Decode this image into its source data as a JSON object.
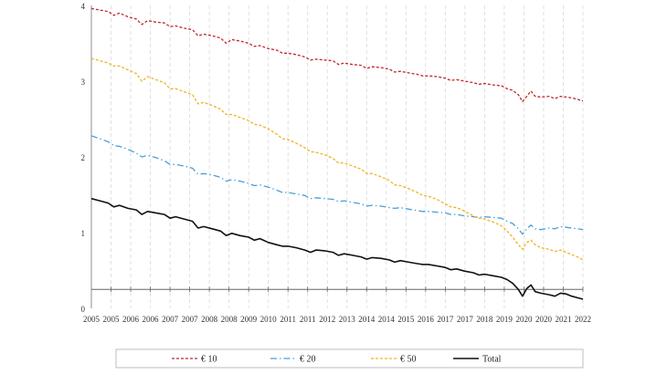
{
  "chart_data": {
    "type": "line",
    "title": "",
    "xlabel": "",
    "ylabel": "",
    "x_tick_labels": [
      "2005",
      "2005",
      "2006",
      "2006",
      "2007",
      "2007",
      "2008",
      "2008",
      "2009",
      "2010",
      "2011",
      "2011",
      "2012",
      "2013",
      "2014",
      "2014",
      "2015",
      "2016",
      "2017",
      "2017",
      "2018",
      "2019",
      "2020",
      "2020",
      "2021",
      "2022"
    ],
    "y_ticks": [
      0,
      1,
      2,
      3,
      4
    ],
    "ylim": [
      0,
      4
    ],
    "xlim": [
      2005.0,
      2022.5
    ],
    "reference_line_y": 0.25,
    "grid": {
      "vertical": true,
      "horizontal": false
    },
    "legend_position": "bottom",
    "series": [
      {
        "name": "€ 10",
        "color": "#c0282d",
        "style": "dashed",
        "points": [
          [
            2005.0,
            3.96
          ],
          [
            2005.3,
            3.94
          ],
          [
            2005.6,
            3.92
          ],
          [
            2005.8,
            3.87
          ],
          [
            2006.0,
            3.9
          ],
          [
            2006.3,
            3.85
          ],
          [
            2006.6,
            3.82
          ],
          [
            2006.8,
            3.75
          ],
          [
            2007.0,
            3.8
          ],
          [
            2007.3,
            3.78
          ],
          [
            2007.6,
            3.77
          ],
          [
            2007.8,
            3.72
          ],
          [
            2008.0,
            3.73
          ],
          [
            2008.3,
            3.7
          ],
          [
            2008.6,
            3.68
          ],
          [
            2008.8,
            3.6
          ],
          [
            2009.0,
            3.62
          ],
          [
            2009.3,
            3.6
          ],
          [
            2009.6,
            3.57
          ],
          [
            2009.8,
            3.5
          ],
          [
            2010.0,
            3.55
          ],
          [
            2010.3,
            3.53
          ],
          [
            2010.6,
            3.5
          ],
          [
            2010.8,
            3.46
          ],
          [
            2011.0,
            3.47
          ],
          [
            2011.3,
            3.43
          ],
          [
            2011.6,
            3.41
          ],
          [
            2011.8,
            3.37
          ],
          [
            2012.0,
            3.37
          ],
          [
            2012.3,
            3.35
          ],
          [
            2012.6,
            3.32
          ],
          [
            2012.8,
            3.28
          ],
          [
            2013.0,
            3.29
          ],
          [
            2013.3,
            3.28
          ],
          [
            2013.6,
            3.27
          ],
          [
            2013.8,
            3.22
          ],
          [
            2014.0,
            3.24
          ],
          [
            2014.3,
            3.22
          ],
          [
            2014.6,
            3.21
          ],
          [
            2014.8,
            3.17
          ],
          [
            2015.0,
            3.19
          ],
          [
            2015.3,
            3.18
          ],
          [
            2015.6,
            3.16
          ],
          [
            2015.8,
            3.12
          ],
          [
            2016.0,
            3.13
          ],
          [
            2016.3,
            3.11
          ],
          [
            2016.6,
            3.09
          ],
          [
            2016.8,
            3.07
          ],
          [
            2017.0,
            3.07
          ],
          [
            2017.3,
            3.06
          ],
          [
            2017.6,
            3.04
          ],
          [
            2017.8,
            3.01
          ],
          [
            2018.0,
            3.02
          ],
          [
            2018.3,
            3.0
          ],
          [
            2018.6,
            2.98
          ],
          [
            2018.8,
            2.96
          ],
          [
            2019.0,
            2.97
          ],
          [
            2019.3,
            2.95
          ],
          [
            2019.6,
            2.94
          ],
          [
            2019.8,
            2.9
          ],
          [
            2020.0,
            2.88
          ],
          [
            2020.2,
            2.82
          ],
          [
            2020.35,
            2.73
          ],
          [
            2020.5,
            2.8
          ],
          [
            2020.65,
            2.87
          ],
          [
            2020.8,
            2.8
          ],
          [
            2021.0,
            2.79
          ],
          [
            2021.3,
            2.8
          ],
          [
            2021.5,
            2.77
          ],
          [
            2021.7,
            2.8
          ],
          [
            2021.9,
            2.79
          ],
          [
            2022.1,
            2.78
          ],
          [
            2022.3,
            2.76
          ],
          [
            2022.5,
            2.74
          ]
        ]
      },
      {
        "name": "€ 20",
        "color": "#4a9fd8",
        "style": "dashdot",
        "points": [
          [
            2005.0,
            2.28
          ],
          [
            2005.3,
            2.24
          ],
          [
            2005.6,
            2.2
          ],
          [
            2005.8,
            2.15
          ],
          [
            2006.0,
            2.14
          ],
          [
            2006.3,
            2.1
          ],
          [
            2006.6,
            2.05
          ],
          [
            2006.8,
            2.0
          ],
          [
            2007.0,
            2.02
          ],
          [
            2007.3,
            1.99
          ],
          [
            2007.6,
            1.95
          ],
          [
            2007.8,
            1.9
          ],
          [
            2008.0,
            1.9
          ],
          [
            2008.3,
            1.88
          ],
          [
            2008.6,
            1.85
          ],
          [
            2008.8,
            1.77
          ],
          [
            2009.0,
            1.78
          ],
          [
            2009.3,
            1.76
          ],
          [
            2009.6,
            1.73
          ],
          [
            2009.8,
            1.68
          ],
          [
            2010.0,
            1.7
          ],
          [
            2010.3,
            1.68
          ],
          [
            2010.6,
            1.65
          ],
          [
            2010.8,
            1.62
          ],
          [
            2011.0,
            1.63
          ],
          [
            2011.3,
            1.6
          ],
          [
            2011.6,
            1.56
          ],
          [
            2011.8,
            1.53
          ],
          [
            2012.0,
            1.53
          ],
          [
            2012.3,
            1.51
          ],
          [
            2012.6,
            1.49
          ],
          [
            2012.8,
            1.45
          ],
          [
            2013.0,
            1.46
          ],
          [
            2013.3,
            1.45
          ],
          [
            2013.6,
            1.44
          ],
          [
            2013.8,
            1.41
          ],
          [
            2014.0,
            1.42
          ],
          [
            2014.3,
            1.4
          ],
          [
            2014.6,
            1.38
          ],
          [
            2014.8,
            1.35
          ],
          [
            2015.0,
            1.36
          ],
          [
            2015.3,
            1.35
          ],
          [
            2015.6,
            1.33
          ],
          [
            2015.8,
            1.32
          ],
          [
            2016.0,
            1.33
          ],
          [
            2016.3,
            1.31
          ],
          [
            2016.6,
            1.29
          ],
          [
            2016.8,
            1.28
          ],
          [
            2017.0,
            1.28
          ],
          [
            2017.3,
            1.27
          ],
          [
            2017.6,
            1.26
          ],
          [
            2017.8,
            1.24
          ],
          [
            2018.0,
            1.24
          ],
          [
            2018.3,
            1.22
          ],
          [
            2018.6,
            1.21
          ],
          [
            2018.8,
            1.2
          ],
          [
            2019.0,
            1.21
          ],
          [
            2019.3,
            1.2
          ],
          [
            2019.6,
            1.19
          ],
          [
            2019.8,
            1.15
          ],
          [
            2020.0,
            1.12
          ],
          [
            2020.2,
            1.05
          ],
          [
            2020.35,
            0.98
          ],
          [
            2020.5,
            1.05
          ],
          [
            2020.65,
            1.1
          ],
          [
            2020.8,
            1.05
          ],
          [
            2021.0,
            1.04
          ],
          [
            2021.3,
            1.06
          ],
          [
            2021.5,
            1.05
          ],
          [
            2021.7,
            1.08
          ],
          [
            2021.9,
            1.07
          ],
          [
            2022.1,
            1.06
          ],
          [
            2022.3,
            1.05
          ],
          [
            2022.5,
            1.04
          ]
        ]
      },
      {
        "name": "€ 50",
        "color": "#f0b323",
        "style": "dashed",
        "points": [
          [
            2005.0,
            3.3
          ],
          [
            2005.3,
            3.27
          ],
          [
            2005.6,
            3.24
          ],
          [
            2005.8,
            3.2
          ],
          [
            2006.0,
            3.2
          ],
          [
            2006.3,
            3.15
          ],
          [
            2006.6,
            3.1
          ],
          [
            2006.8,
            3.0
          ],
          [
            2007.0,
            3.06
          ],
          [
            2007.3,
            3.02
          ],
          [
            2007.6,
            2.98
          ],
          [
            2007.8,
            2.9
          ],
          [
            2008.0,
            2.9
          ],
          [
            2008.3,
            2.86
          ],
          [
            2008.6,
            2.82
          ],
          [
            2008.8,
            2.7
          ],
          [
            2009.0,
            2.72
          ],
          [
            2009.3,
            2.68
          ],
          [
            2009.6,
            2.63
          ],
          [
            2009.8,
            2.56
          ],
          [
            2010.0,
            2.56
          ],
          [
            2010.3,
            2.52
          ],
          [
            2010.6,
            2.48
          ],
          [
            2010.8,
            2.43
          ],
          [
            2011.0,
            2.42
          ],
          [
            2011.3,
            2.37
          ],
          [
            2011.6,
            2.3
          ],
          [
            2011.8,
            2.24
          ],
          [
            2012.0,
            2.23
          ],
          [
            2012.3,
            2.18
          ],
          [
            2012.6,
            2.12
          ],
          [
            2012.8,
            2.07
          ],
          [
            2013.0,
            2.06
          ],
          [
            2013.3,
            2.03
          ],
          [
            2013.6,
            1.98
          ],
          [
            2013.8,
            1.92
          ],
          [
            2014.0,
            1.92
          ],
          [
            2014.3,
            1.88
          ],
          [
            2014.6,
            1.84
          ],
          [
            2014.8,
            1.78
          ],
          [
            2015.0,
            1.78
          ],
          [
            2015.3,
            1.74
          ],
          [
            2015.6,
            1.69
          ],
          [
            2015.8,
            1.63
          ],
          [
            2016.0,
            1.62
          ],
          [
            2016.3,
            1.58
          ],
          [
            2016.6,
            1.53
          ],
          [
            2016.8,
            1.49
          ],
          [
            2017.0,
            1.48
          ],
          [
            2017.3,
            1.44
          ],
          [
            2017.6,
            1.38
          ],
          [
            2017.8,
            1.34
          ],
          [
            2018.0,
            1.33
          ],
          [
            2018.3,
            1.28
          ],
          [
            2018.6,
            1.22
          ],
          [
            2018.8,
            1.19
          ],
          [
            2019.0,
            1.18
          ],
          [
            2019.3,
            1.14
          ],
          [
            2019.6,
            1.09
          ],
          [
            2019.8,
            1.02
          ],
          [
            2020.0,
            0.94
          ],
          [
            2020.2,
            0.84
          ],
          [
            2020.35,
            0.78
          ],
          [
            2020.5,
            0.87
          ],
          [
            2020.65,
            0.9
          ],
          [
            2020.8,
            0.84
          ],
          [
            2021.0,
            0.8
          ],
          [
            2021.3,
            0.78
          ],
          [
            2021.5,
            0.75
          ],
          [
            2021.7,
            0.77
          ],
          [
            2021.9,
            0.74
          ],
          [
            2022.1,
            0.71
          ],
          [
            2022.3,
            0.68
          ],
          [
            2022.5,
            0.64
          ]
        ]
      },
      {
        "name": "Total",
        "color": "#111111",
        "style": "solid",
        "points": [
          [
            2005.0,
            1.45
          ],
          [
            2005.3,
            1.42
          ],
          [
            2005.6,
            1.39
          ],
          [
            2005.8,
            1.34
          ],
          [
            2006.0,
            1.36
          ],
          [
            2006.3,
            1.32
          ],
          [
            2006.6,
            1.3
          ],
          [
            2006.8,
            1.24
          ],
          [
            2007.0,
            1.28
          ],
          [
            2007.3,
            1.26
          ],
          [
            2007.6,
            1.24
          ],
          [
            2007.8,
            1.19
          ],
          [
            2008.0,
            1.21
          ],
          [
            2008.3,
            1.18
          ],
          [
            2008.6,
            1.15
          ],
          [
            2008.8,
            1.06
          ],
          [
            2009.0,
            1.08
          ],
          [
            2009.3,
            1.05
          ],
          [
            2009.6,
            1.02
          ],
          [
            2009.8,
            0.96
          ],
          [
            2010.0,
            0.99
          ],
          [
            2010.3,
            0.96
          ],
          [
            2010.6,
            0.94
          ],
          [
            2010.8,
            0.9
          ],
          [
            2011.0,
            0.92
          ],
          [
            2011.3,
            0.87
          ],
          [
            2011.6,
            0.84
          ],
          [
            2011.8,
            0.82
          ],
          [
            2012.0,
            0.82
          ],
          [
            2012.3,
            0.8
          ],
          [
            2012.6,
            0.77
          ],
          [
            2012.8,
            0.74
          ],
          [
            2013.0,
            0.77
          ],
          [
            2013.3,
            0.76
          ],
          [
            2013.6,
            0.74
          ],
          [
            2013.8,
            0.7
          ],
          [
            2014.0,
            0.72
          ],
          [
            2014.3,
            0.7
          ],
          [
            2014.6,
            0.68
          ],
          [
            2014.8,
            0.65
          ],
          [
            2015.0,
            0.67
          ],
          [
            2015.3,
            0.66
          ],
          [
            2015.6,
            0.64
          ],
          [
            2015.8,
            0.61
          ],
          [
            2016.0,
            0.63
          ],
          [
            2016.3,
            0.61
          ],
          [
            2016.6,
            0.59
          ],
          [
            2016.8,
            0.58
          ],
          [
            2017.0,
            0.58
          ],
          [
            2017.3,
            0.56
          ],
          [
            2017.6,
            0.54
          ],
          [
            2017.8,
            0.51
          ],
          [
            2018.0,
            0.52
          ],
          [
            2018.3,
            0.49
          ],
          [
            2018.6,
            0.47
          ],
          [
            2018.8,
            0.44
          ],
          [
            2019.0,
            0.45
          ],
          [
            2019.3,
            0.43
          ],
          [
            2019.6,
            0.41
          ],
          [
            2019.8,
            0.38
          ],
          [
            2020.0,
            0.33
          ],
          [
            2020.2,
            0.25
          ],
          [
            2020.35,
            0.16
          ],
          [
            2020.5,
            0.26
          ],
          [
            2020.65,
            0.31
          ],
          [
            2020.8,
            0.22
          ],
          [
            2021.0,
            0.2
          ],
          [
            2021.3,
            0.18
          ],
          [
            2021.5,
            0.16
          ],
          [
            2021.7,
            0.2
          ],
          [
            2021.9,
            0.19
          ],
          [
            2022.1,
            0.16
          ],
          [
            2022.3,
            0.14
          ],
          [
            2022.5,
            0.12
          ]
        ]
      }
    ]
  }
}
